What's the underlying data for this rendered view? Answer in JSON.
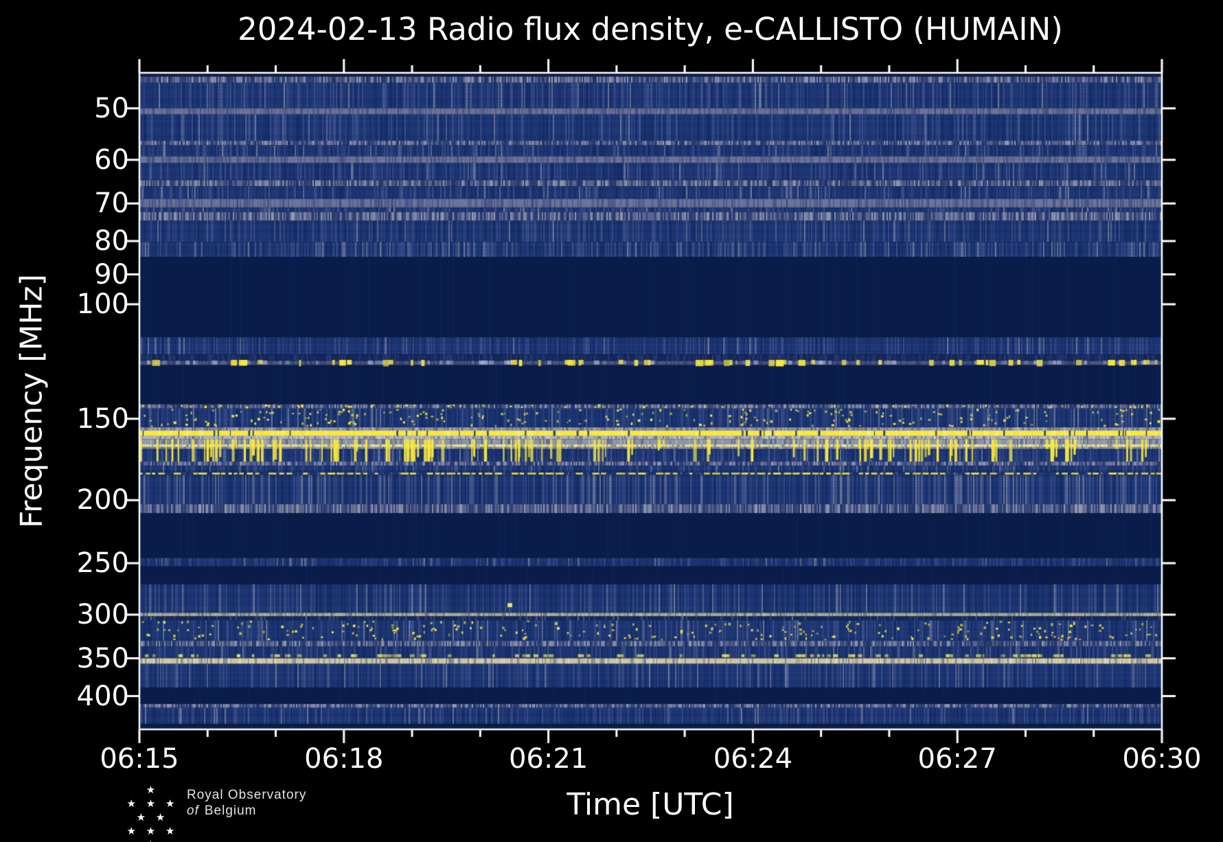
{
  "title": "2024-02-13 Radio flux density, e-CALLISTO (HUMAIN)",
  "axes": {
    "xlabel": "Time [UTC]",
    "ylabel": "Frequency [MHz]",
    "x_tick_labels": [
      "06:15",
      "06:18",
      "06:21",
      "06:24",
      "06:27",
      "06:30"
    ],
    "y_tick_labels": [
      "50",
      "60",
      "70",
      "80",
      "90",
      "100",
      "150",
      "200",
      "250",
      "300",
      "350",
      "400"
    ]
  },
  "logo": {
    "line1": "Royal Observatory",
    "line2_italic": "of",
    "line2_rest": "Belgium",
    "stars": {
      "row1": "★",
      "row2": "★ ★ ★ ★ ★",
      "row3": "★ ★ ★ ★"
    }
  },
  "chart_data": {
    "type": "heatmap",
    "subtype": "radio-spectrogram",
    "title": "2024-02-13 Radio flux density, e-CALLISTO (HUMAIN)",
    "xlabel": "Time [UTC]",
    "ylabel": "Frequency [MHz]",
    "x_start_utc": "06:15",
    "x_end_utc": "06:30",
    "x_span_minutes": 15,
    "x_major_tick_minutes": 3,
    "x_minor_tick_minutes": 1,
    "x_tick_labels": [
      "06:15",
      "06:18",
      "06:21",
      "06:24",
      "06:27",
      "06:30"
    ],
    "y_scale": "log",
    "y_inverted": true,
    "y_min_mhz": 44.1,
    "y_max_mhz": 450,
    "y_ticks_mhz": [
      50,
      60,
      70,
      80,
      90,
      100,
      150,
      200,
      250,
      300,
      350,
      400
    ],
    "grid": false,
    "legend": "none",
    "palette": {
      "dark": "#0a1c4a",
      "dark2": "#122a63",
      "base": "#1e3775",
      "light": "#5f6da5",
      "gray": "#9096ab",
      "speckle_base": "#5a648e",
      "gray_band": "#8d93a8",
      "gray_band_light": "#b9bdc9",
      "pale_gray": "#aeb2c0",
      "pale_line": "#cac4a4",
      "pale_line_dim": "#a6a48e",
      "pale_yellow": "#e6dd96",
      "yellow": "#f8e83f",
      "yellow_bright": "#fff3a0",
      "frame": "#ffffff",
      "background": "#000000"
    },
    "bands": [
      {
        "f0": 44.1,
        "f1": 44.7,
        "style": "dark"
      },
      {
        "f0": 44.7,
        "f1": 45.7,
        "style": "speckle"
      },
      {
        "f0": 45.7,
        "f1": 50.0,
        "style": "noise"
      },
      {
        "f0": 50.0,
        "f1": 51.1,
        "style": "gray_soft"
      },
      {
        "f0": 51.1,
        "f1": 56.1,
        "style": "noise"
      },
      {
        "f0": 56.1,
        "f1": 57.0,
        "style": "speckle"
      },
      {
        "f0": 57.0,
        "f1": 59.3,
        "style": "noise"
      },
      {
        "f0": 59.3,
        "f1": 60.7,
        "style": "gray_soft"
      },
      {
        "f0": 60.7,
        "f1": 64.5,
        "style": "noise"
      },
      {
        "f0": 64.5,
        "f1": 65.9,
        "style": "speckle"
      },
      {
        "f0": 65.9,
        "f1": 68.9,
        "style": "noise"
      },
      {
        "f0": 68.9,
        "f1": 71.0,
        "style": "gray_soft"
      },
      {
        "f0": 71.0,
        "f1": 72.2,
        "style": "noise"
      },
      {
        "f0": 72.2,
        "f1": 74.4,
        "style": "speckle"
      },
      {
        "f0": 74.4,
        "f1": 80.2,
        "style": "noise"
      },
      {
        "f0": 80.2,
        "f1": 84.6,
        "style": "noise_dense"
      },
      {
        "f0": 84.6,
        "f1": 112.4,
        "style": "dark"
      },
      {
        "f0": 112.4,
        "f1": 119.5,
        "style": "noise"
      },
      {
        "f0": 119.5,
        "f1": 124.6,
        "style": "airband"
      },
      {
        "f0": 124.6,
        "f1": 142.5,
        "style": "dark"
      },
      {
        "f0": 142.5,
        "f1": 144.6,
        "style": "speckle_yellow"
      },
      {
        "f0": 144.6,
        "f1": 154.6,
        "style": "noise_yspecks"
      },
      {
        "f0": 154.6,
        "f1": 156.4,
        "style": "gray"
      },
      {
        "f0": 156.4,
        "f1": 159.4,
        "style": "yellow"
      },
      {
        "f0": 159.4,
        "f1": 161.2,
        "style": "pale_gray"
      },
      {
        "f0": 161.2,
        "f1": 164.2,
        "style": "gray"
      },
      {
        "f0": 164.2,
        "f1": 165.7,
        "style": "pale_yellow"
      },
      {
        "f0": 165.7,
        "f1": 166.9,
        "style": "gray"
      },
      {
        "f0": 166.9,
        "f1": 174.5,
        "style": "noise"
      },
      {
        "f0": 174.5,
        "f1": 177.0,
        "style": "speckle"
      },
      {
        "f0": 177.0,
        "f1": 181.2,
        "style": "noise"
      },
      {
        "f0": 181.2,
        "f1": 182.9,
        "style": "yellow_dash"
      },
      {
        "f0": 182.9,
        "f1": 202.9,
        "style": "noise_gray"
      },
      {
        "f0": 202.9,
        "f1": 209.5,
        "style": "speckle"
      },
      {
        "f0": 209.5,
        "f1": 245.5,
        "style": "dark"
      },
      {
        "f0": 245.5,
        "f1": 252.8,
        "style": "noise"
      },
      {
        "f0": 252.8,
        "f1": 269.3,
        "style": "dark"
      },
      {
        "f0": 269.3,
        "f1": 298.0,
        "style": "noise"
      },
      {
        "f0": 298.0,
        "f1": 301.7,
        "style": "pale_line_dim"
      },
      {
        "f0": 301.7,
        "f1": 306.1,
        "style": "noise_dark"
      },
      {
        "f0": 306.1,
        "f1": 329.1,
        "style": "noise_yspecks"
      },
      {
        "f0": 329.1,
        "f1": 335.6,
        "style": "speckle"
      },
      {
        "f0": 335.6,
        "f1": 350.0,
        "style": "noise"
      },
      {
        "f0": 350.0,
        "f1": 356.9,
        "style": "pale_line"
      },
      {
        "f0": 356.9,
        "f1": 388.4,
        "style": "noise"
      },
      {
        "f0": 388.4,
        "f1": 411.3,
        "style": "dark"
      },
      {
        "f0": 411.3,
        "f1": 417.0,
        "style": "speckle"
      },
      {
        "f0": 417.0,
        "f1": 441.5,
        "style": "noise"
      },
      {
        "f0": 441.5,
        "f1": 450.0,
        "style": "dark"
      }
    ],
    "overlays": [
      {
        "style": "vstreaks",
        "f0": 161.2,
        "f1": 174.5,
        "count": 120
      },
      {
        "style": "microdash",
        "f0": 345.0,
        "f1": 348.5,
        "count": 90
      },
      {
        "style": "dot",
        "f": 290,
        "t_min": 5.43
      }
    ],
    "notable_features": [
      {
        "frequency_mhz": 158,
        "description": "continuous bright narrowband line"
      },
      {
        "frequency_mhz": "162-174",
        "description": "intermittent bright vertical bursts"
      },
      {
        "frequency_mhz": 182,
        "description": "dashed bright line"
      },
      {
        "frequency_mhz": "120-125",
        "description": "sporadic bright blobs"
      },
      {
        "frequency_mhz": 300,
        "description": "faint pale line"
      },
      {
        "frequency_mhz": 353,
        "description": "pale continuous line"
      },
      {
        "frequency_mhz": "85-112, 125-142, 210-245, 253-269, 388-411",
        "description": "quiet dark bands"
      }
    ]
  }
}
